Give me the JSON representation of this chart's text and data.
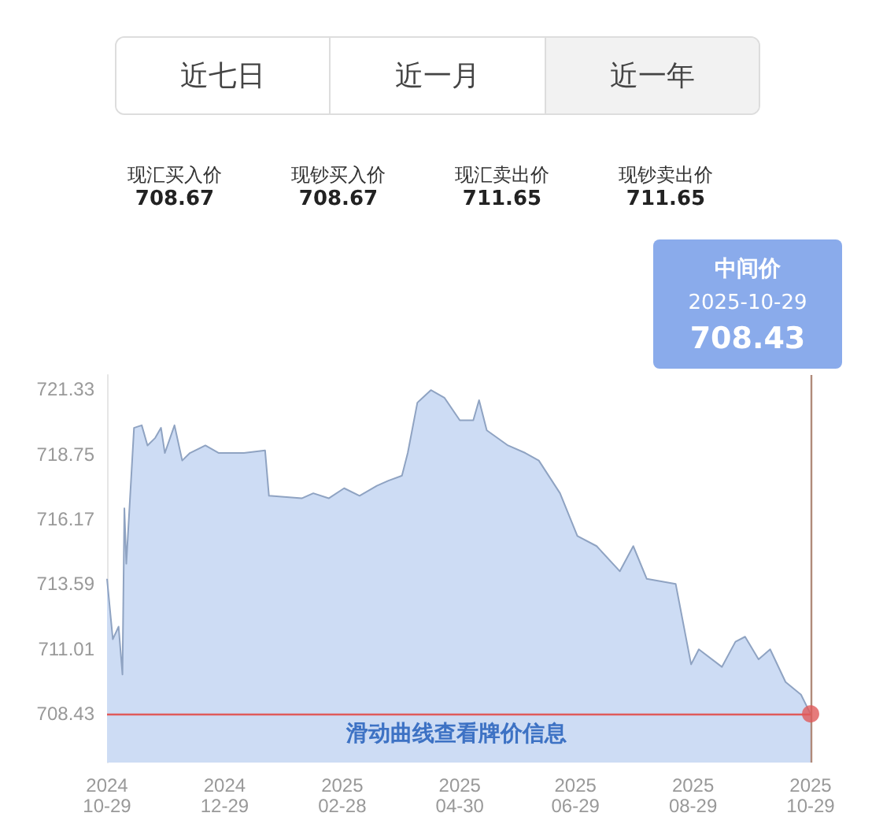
{
  "chart_data": {
    "type": "area",
    "x": [
      "2024-10-29",
      "2024-11-01",
      "2024-11-04",
      "2024-11-06",
      "2024-11-07",
      "2024-11-08",
      "2024-11-12",
      "2024-11-16",
      "2024-11-19",
      "2024-11-23",
      "2024-11-26",
      "2024-11-28",
      "2024-12-03",
      "2024-12-07",
      "2024-12-11",
      "2024-12-19",
      "2024-12-26",
      "2025-01-08",
      "2025-01-19",
      "2025-01-21",
      "2025-02-07",
      "2025-02-13",
      "2025-02-21",
      "2025-03-01",
      "2025-03-09",
      "2025-03-18",
      "2025-03-24",
      "2025-03-31",
      "2025-04-03",
      "2025-04-08",
      "2025-04-15",
      "2025-04-22",
      "2025-04-30",
      "2025-05-07",
      "2025-05-10",
      "2025-05-14",
      "2025-05-25",
      "2025-06-03",
      "2025-06-10",
      "2025-06-21",
      "2025-06-30",
      "2025-07-10",
      "2025-07-22",
      "2025-07-29",
      "2025-08-05",
      "2025-08-20",
      "2025-08-28",
      "2025-09-01",
      "2025-09-13",
      "2025-09-20",
      "2025-09-25",
      "2025-10-02",
      "2025-10-08",
      "2025-10-16",
      "2025-10-24",
      "2025-10-29"
    ],
    "series": [
      {
        "type": "scatter",
        "marker": "circle",
        "color": "#e05a5a",
        "x": [
          "2025-10-29"
        ],
        "values": [
          708.43
        ]
      },
      {
        "color": "#8fa3c2",
        "values": [
          713.8,
          711.4,
          711.9,
          710.0,
          716.6,
          714.4,
          719.8,
          719.9,
          719.1,
          719.4,
          719.8,
          718.8,
          719.9,
          718.5,
          718.8,
          719.1,
          718.8,
          718.8,
          718.9,
          717.1,
          717.0,
          717.2,
          717.0,
          717.4,
          717.1,
          717.5,
          717.7,
          717.9,
          718.8,
          720.8,
          721.3,
          721.0,
          720.1,
          720.1,
          720.9,
          719.7,
          719.1,
          718.8,
          718.5,
          717.2,
          715.5,
          715.1,
          714.1,
          715.1,
          713.8,
          713.6,
          710.4,
          711.0,
          710.3,
          711.3,
          711.5,
          710.6,
          711.0,
          709.7,
          709.2,
          708.43
        ]
      }
    ],
    "ylim": [
      706.5,
      721.9
    ],
    "yticks": [
      708.43,
      711.01,
      713.59,
      716.17,
      718.75,
      721.33
    ],
    "xlim": [
      "2024-10-29",
      "2025-10-29"
    ],
    "xticks": [
      {
        "value": "2024-10-29",
        "label": "2024\n10-29"
      },
      {
        "value": "2024-12-29",
        "label": "2024\n12-29"
      },
      {
        "value": "2025-02-28",
        "label": "2025\n02-28"
      },
      {
        "value": "2025-04-30",
        "label": "2025\n04-30"
      },
      {
        "value": "2025-06-29",
        "label": "2025\n06-29"
      },
      {
        "value": "2025-08-29",
        "label": "2025\n08-29"
      },
      {
        "value": "2025-10-29",
        "label": "2025\n10-29"
      }
    ],
    "grid": false,
    "marker": "none",
    "ref_lines": [
      {
        "axis": "y",
        "value": 708.43,
        "color": "#e05a5a"
      },
      {
        "axis": "x",
        "value": "2025-10-29",
        "color": "#b08a7a"
      }
    ],
    "annotations": [
      "近七日",
      "近一月",
      "近一年",
      "现汇买入价\n708.67",
      "现钞买入价\n708.67",
      "现汇卖出价\n711.65",
      "现钞卖出价\n711.65",
      "滑动曲线查看牌价信息",
      "中间价\n2025-10-29\n708.43"
    ]
  }
}
